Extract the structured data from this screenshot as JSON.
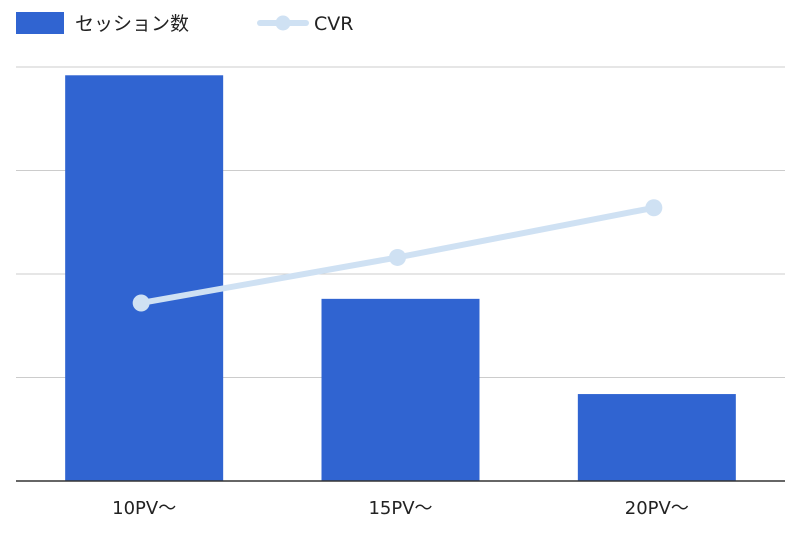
{
  "chart_data": {
    "type": "bar",
    "title": "",
    "xlabel": "",
    "ylabel": "",
    "categories": [
      "10PV〜",
      "15PV〜",
      "20PV〜"
    ],
    "legend_position": "top-left",
    "grid": true,
    "series": [
      {
        "name": "セッション数",
        "type": "bar",
        "axis": "left",
        "color": "#3064D1",
        "values": [
          98,
          44,
          21
        ]
      },
      {
        "name": "CVR",
        "type": "line",
        "axis": "right",
        "color": "#CFE1F3",
        "values": [
          43,
          54,
          66
        ]
      }
    ],
    "ylim": [
      0,
      100
    ],
    "y2lim": [
      0,
      100
    ]
  }
}
